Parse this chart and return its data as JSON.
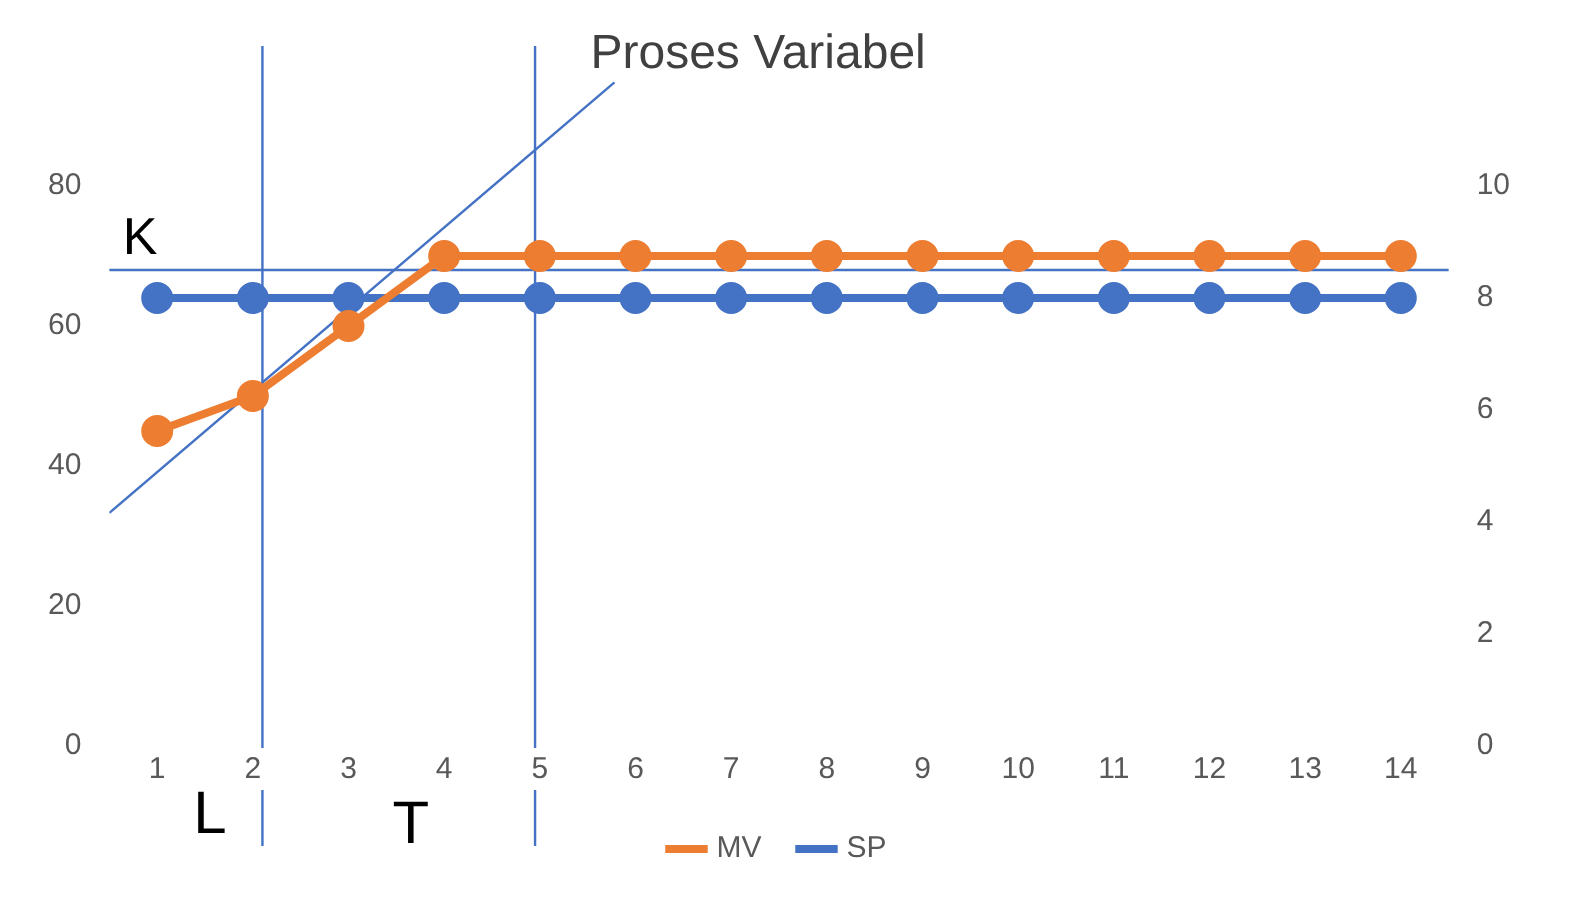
{
  "chart_data": {
    "type": "line",
    "x": [
      1,
      2,
      3,
      4,
      5,
      6,
      7,
      8,
      9,
      10,
      11,
      12,
      13,
      14
    ],
    "xlim": [
      0.5,
      14.5
    ],
    "xticks": [
      1,
      2,
      3,
      4,
      5,
      6,
      7,
      8,
      9,
      10,
      11,
      12,
      13,
      14
    ],
    "ylim": [
      0,
      100
    ],
    "yticks": [
      0,
      20,
      40,
      60,
      80
    ],
    "y2lim": [
      0,
      12.5
    ],
    "y2ticks": [
      0,
      2,
      4,
      6,
      8,
      10
    ],
    "series": [
      {
        "name": "MV",
        "color": "#ed7d31",
        "values": [
          45,
          50,
          60,
          70,
          70,
          70,
          70,
          70,
          70,
          70,
          70,
          70,
          70,
          70
        ]
      },
      {
        "name": "SP",
        "color": "#4472c4",
        "axis": "y2",
        "values": [
          8,
          8,
          8,
          8,
          8,
          8,
          8,
          8,
          8,
          8,
          8,
          8,
          8,
          8
        ]
      },
      {
        "type": "line",
        "color": "#4472c4",
        "marker": "none",
        "x": [
          0.5,
          5.78
        ],
        "values": [
          33.3,
          94.8
        ]
      }
    ],
    "ref_lines": [
      {
        "axis": "x",
        "value": 2.1,
        "color": "#4472c4"
      },
      {
        "axis": "x",
        "value": 4.95,
        "color": "#4472c4"
      },
      {
        "axis": "y",
        "value": 68,
        "label": "K",
        "color": "#4472c4"
      }
    ],
    "annotations": [
      {
        "text": "Proses Variabel",
        "x": 5.78,
        "y": 94.8
      },
      "L",
      "T"
    ],
    "marker": "circle",
    "grid": false,
    "legend": "bottom"
  }
}
